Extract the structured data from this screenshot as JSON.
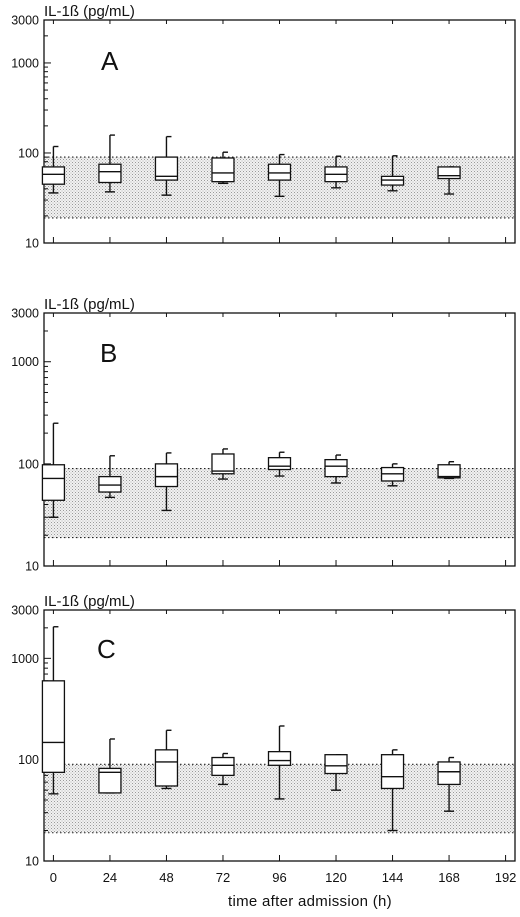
{
  "chart_data": [
    {
      "type": "box",
      "panel_label": "A",
      "ylabel": "IL-1ß (pg/mL)",
      "y_scale": "log",
      "ylim": [
        10,
        3000
      ],
      "yticks": [
        10,
        100,
        1000,
        3000
      ],
      "y_tick_labels": [
        "10",
        "100",
        "1000",
        "3000"
      ],
      "xlim": [
        -4,
        196
      ],
      "xticks": [
        0,
        24,
        48,
        72,
        96,
        120,
        144,
        168,
        192
      ],
      "reference_band": [
        19,
        90
      ],
      "boxes": [
        {
          "x": 0,
          "min": 36,
          "q1": 45,
          "median": 58,
          "q3": 70,
          "max": 118
        },
        {
          "x": 24,
          "min": 37,
          "q1": 47,
          "median": 62,
          "q3": 75,
          "max": 158
        },
        {
          "x": 48,
          "min": 34,
          "q1": 50,
          "median": 55,
          "q3": 90,
          "max": 152
        },
        {
          "x": 72,
          "min": 46,
          "q1": 48,
          "median": 60,
          "q3": 88,
          "max": 102
        },
        {
          "x": 96,
          "min": 33,
          "q1": 50,
          "median": 60,
          "q3": 75,
          "max": 96
        },
        {
          "x": 120,
          "min": 41,
          "q1": 48,
          "median": 58,
          "q3": 70,
          "max": 92
        },
        {
          "x": 144,
          "min": 38,
          "q1": 44,
          "median": 50,
          "q3": 55,
          "max": 93
        },
        {
          "x": 168,
          "min": 35,
          "q1": 52,
          "median": 56,
          "q3": 70,
          "max": 70
        }
      ]
    },
    {
      "type": "box",
      "panel_label": "B",
      "ylabel": "IL-1ß (pg/mL)",
      "y_scale": "log",
      "ylim": [
        10,
        3000
      ],
      "yticks": [
        10,
        100,
        1000,
        3000
      ],
      "y_tick_labels": [
        "10",
        "100",
        "1000",
        "3000"
      ],
      "xlim": [
        -4,
        196
      ],
      "xticks": [
        0,
        24,
        48,
        72,
        96,
        120,
        144,
        168,
        192
      ],
      "reference_band": [
        19,
        90
      ],
      "boxes": [
        {
          "x": 0,
          "min": 30,
          "q1": 44,
          "median": 72,
          "q3": 98,
          "max": 250
        },
        {
          "x": 24,
          "min": 47,
          "q1": 53,
          "median": 62,
          "q3": 75,
          "max": 120
        },
        {
          "x": 48,
          "min": 35,
          "q1": 60,
          "median": 75,
          "q3": 100,
          "max": 128
        },
        {
          "x": 72,
          "min": 71,
          "q1": 80,
          "median": 85,
          "q3": 125,
          "max": 140
        },
        {
          "x": 96,
          "min": 76,
          "q1": 88,
          "median": 95,
          "q3": 115,
          "max": 130
        },
        {
          "x": 120,
          "min": 65,
          "q1": 75,
          "median": 95,
          "q3": 110,
          "max": 122
        },
        {
          "x": 144,
          "min": 61,
          "q1": 68,
          "median": 80,
          "q3": 92,
          "max": 100
        },
        {
          "x": 168,
          "min": 72,
          "q1": 73,
          "median": 75,
          "q3": 98,
          "max": 105
        }
      ]
    },
    {
      "type": "box",
      "panel_label": "C",
      "ylabel": "IL-1ß (pg/mL)",
      "xlabel": "time after admission (h)",
      "y_scale": "log",
      "ylim": [
        10,
        3000
      ],
      "yticks": [
        10,
        100,
        1000,
        3000
      ],
      "y_tick_labels": [
        "10",
        "100",
        "1000",
        "3000"
      ],
      "xlim": [
        -4,
        196
      ],
      "xticks": [
        0,
        24,
        48,
        72,
        96,
        120,
        144,
        168,
        192
      ],
      "x_tick_labels": [
        "0",
        "24",
        "48",
        "72",
        "96",
        "120",
        "144",
        "168",
        "192"
      ],
      "reference_band": [
        19,
        90
      ],
      "boxes": [
        {
          "x": 0,
          "min": 46,
          "q1": 75,
          "median": 148,
          "q3": 600,
          "max": 2050
        },
        {
          "x": 24,
          "min": 47,
          "q1": 47,
          "median": 75,
          "q3": 82,
          "max": 160
        },
        {
          "x": 48,
          "min": 52,
          "q1": 55,
          "median": 95,
          "q3": 125,
          "max": 195
        },
        {
          "x": 72,
          "min": 57,
          "q1": 70,
          "median": 88,
          "q3": 105,
          "max": 115
        },
        {
          "x": 96,
          "min": 41,
          "q1": 88,
          "median": 98,
          "q3": 120,
          "max": 215
        },
        {
          "x": 120,
          "min": 50,
          "q1": 73,
          "median": 87,
          "q3": 112,
          "max": 112
        },
        {
          "x": 144,
          "min": 20,
          "q1": 52,
          "median": 68,
          "q3": 112,
          "max": 125
        },
        {
          "x": 168,
          "min": 31,
          "q1": 57,
          "median": 76,
          "q3": 95,
          "max": 105
        }
      ]
    }
  ]
}
